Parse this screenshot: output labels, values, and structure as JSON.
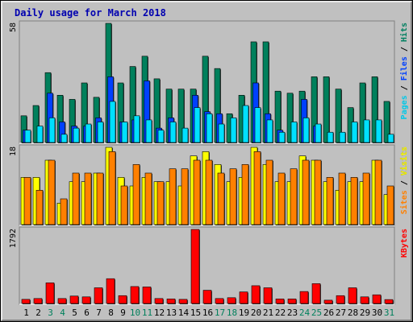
{
  "chart_data": {
    "type": "bar",
    "title": "Daily usage for March 2018",
    "categories": [
      "1",
      "2",
      "3",
      "4",
      "5",
      "6",
      "7",
      "8",
      "9",
      "10",
      "11",
      "12",
      "13",
      "14",
      "15",
      "16",
      "17",
      "18",
      "19",
      "20",
      "21",
      "22",
      "23",
      "24",
      "25",
      "26",
      "27",
      "28",
      "29",
      "30",
      "31"
    ],
    "weekend_days": [
      "3",
      "4",
      "10",
      "11",
      "17",
      "18",
      "24",
      "25",
      "31"
    ],
    "panels": [
      {
        "name": "hits",
        "ymax_label": "58",
        "ymax": 58,
        "right_labels": [
          {
            "text": "Pages",
            "color": "#00c8e8"
          },
          {
            "text": " / ",
            "color": "#000000"
          },
          {
            "text": "Files",
            "color": "#0040ff"
          },
          {
            "text": " / ",
            "color": "#000000"
          },
          {
            "text": "Hits",
            "color": "#008060"
          }
        ],
        "series": [
          {
            "name": "Hits",
            "color": "#00805c",
            "values": [
              13,
              18,
              34,
              23,
              21,
              29,
              22,
              58,
              29,
              37,
              42,
              31,
              26,
              26,
              26,
              42,
              36,
              14,
              23,
              49,
              49,
              25,
              24,
              25,
              32,
              32,
              26,
              17,
              29,
              32,
              20
            ]
          },
          {
            "name": "Files",
            "color": "#0040ff",
            "values": [
              6,
              0,
              24,
              10,
              8,
              8,
              12,
              32,
              10,
              11,
              30,
              7,
              12,
              0,
              23,
              15,
              14,
              0,
              0,
              29,
              14,
              6,
              0,
              21,
              8,
              0,
              0,
              0,
              0,
              0,
              0
            ]
          },
          {
            "name": "Pages",
            "color": "#00e0ff",
            "values": [
              6,
              8,
              12,
              4,
              7,
              9,
              10,
              20,
              10,
              13,
              11,
              6,
              10,
              7,
              17,
              14,
              9,
              12,
              18,
              17,
              11,
              5,
              10,
              12,
              9,
              5,
              5,
              10,
              11,
              11,
              4
            ]
          }
        ]
      },
      {
        "name": "visits",
        "ymax_label": "18",
        "ymax": 18,
        "right_labels": [
          {
            "text": "Sites",
            "color": "#ff8000"
          },
          {
            "text": " / ",
            "color": "#000000"
          },
          {
            "text": "Visits",
            "color": "#ffff00"
          }
        ],
        "series": [
          {
            "name": "Visits",
            "color": "#ffff00",
            "values": [
              11,
              11,
              15,
              5,
              10,
              10,
              12,
              18,
              11,
              9,
              11,
              10,
              10,
              9,
              16,
              17,
              14,
              10,
              11,
              18,
              14,
              10,
              10,
              16,
              15,
              10,
              8,
              10,
              10,
              15,
              7
            ]
          },
          {
            "name": "Sites",
            "color": "#ff8000",
            "values": [
              11,
              8,
              15,
              6,
              12,
              12,
              12,
              17,
              9,
              14,
              12,
              10,
              13,
              13,
              15,
              15,
              12,
              13,
              14,
              17,
              15,
              12,
              13,
              15,
              15,
              11,
              12,
              11,
              12,
              15,
              9
            ]
          }
        ]
      },
      {
        "name": "kbytes",
        "ymax_label": "1792",
        "ymax": 1792,
        "right_labels": [
          {
            "text": "KBytes",
            "color": "#ff0000"
          }
        ],
        "series": [
          {
            "name": "KBytes",
            "color": "#ff0000",
            "values": [
              100,
              120,
              500,
              120,
              180,
              160,
              380,
              600,
              190,
              410,
              400,
              120,
              110,
              100,
              1792,
              320,
              120,
              140,
              280,
              430,
              380,
              110,
              110,
              290,
              480,
              80,
              190,
              380,
              160,
              210,
              95
            ]
          }
        ]
      }
    ]
  }
}
